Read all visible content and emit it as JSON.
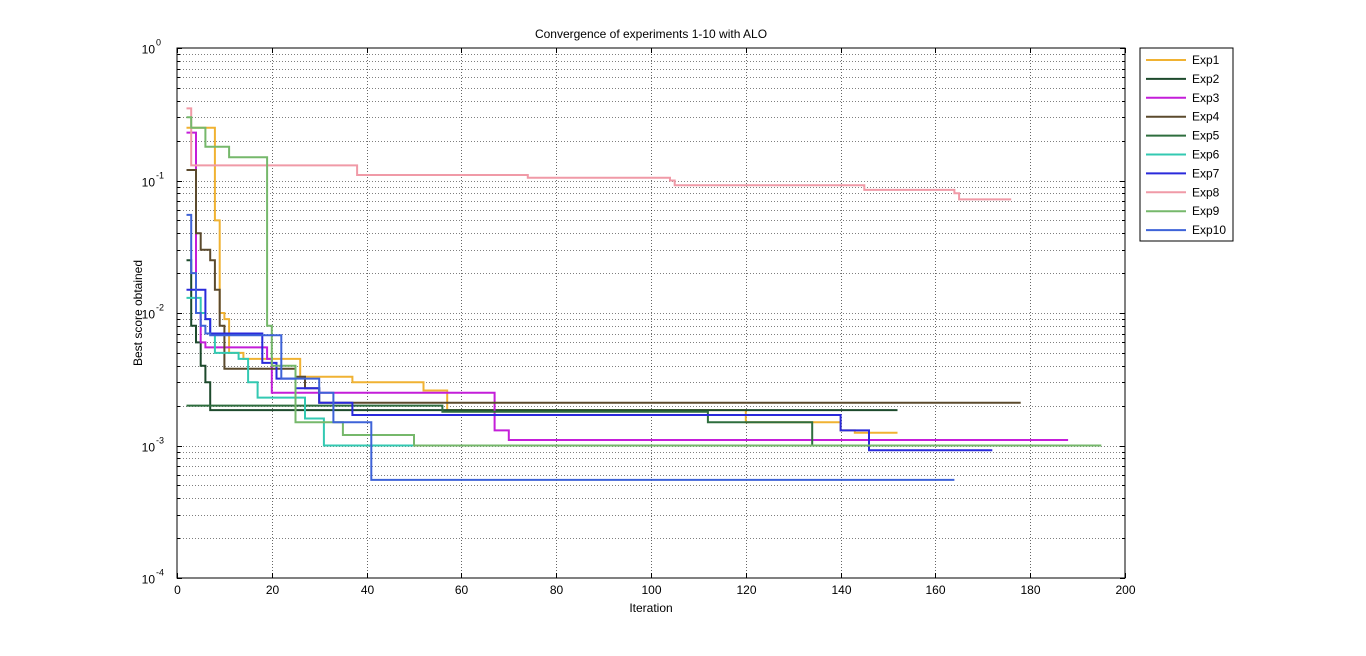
{
  "chart_data": {
    "type": "line",
    "title": "Convergence of experiments 1-10 with ALO",
    "xlabel": "Iteration",
    "ylabel": "Best score obtained",
    "xlim": [
      0,
      200
    ],
    "ylim": [
      0.0001,
      1
    ],
    "yscale": "log",
    "grid": true,
    "legend_position": "outside-top-right",
    "x_ticks": [
      0,
      20,
      40,
      60,
      80,
      100,
      120,
      140,
      160,
      180,
      200
    ],
    "y_ticks": [
      {
        "value": 1,
        "base": "10",
        "exp": "0"
      },
      {
        "value": 0.1,
        "base": "10",
        "exp": "-1"
      },
      {
        "value": 0.01,
        "base": "10",
        "exp": "-2"
      },
      {
        "value": 0.001,
        "base": "10",
        "exp": "-3"
      },
      {
        "value": 0.0001,
        "base": "10",
        "exp": "-4"
      }
    ],
    "series": [
      {
        "name": "Exp1",
        "color": "#f0b232",
        "x": [
          2,
          3,
          7,
          8,
          9,
          10,
          11,
          14,
          26,
          37,
          52,
          57,
          120,
          140,
          143,
          152
        ],
        "y": [
          0.25,
          0.25,
          0.25,
          0.05,
          0.01,
          0.009,
          0.005,
          0.0045,
          0.0033,
          0.003,
          0.0026,
          0.00185,
          0.0015,
          0.0013,
          0.00125,
          0.00125
        ]
      },
      {
        "name": "Exp2",
        "color": "#1d4a2c",
        "x": [
          2,
          3,
          4,
          5,
          6,
          7,
          50,
          152
        ],
        "y": [
          0.025,
          0.008,
          0.006,
          0.004,
          0.003,
          0.00185,
          0.00185,
          0.00185
        ]
      },
      {
        "name": "Exp3",
        "color": "#c41ed9",
        "x": [
          2,
          3,
          4,
          5,
          6,
          15,
          19,
          20,
          67,
          70,
          188
        ],
        "y": [
          0.23,
          0.23,
          0.01,
          0.006,
          0.0055,
          0.0055,
          0.0045,
          0.0025,
          0.0013,
          0.0011,
          0.0011
        ]
      },
      {
        "name": "Exp4",
        "color": "#5b4a2d",
        "x": [
          2,
          3,
          4,
          5,
          6,
          7,
          8,
          9,
          10,
          20,
          25,
          27,
          30,
          178
        ],
        "y": [
          0.12,
          0.12,
          0.04,
          0.03,
          0.03,
          0.025,
          0.015,
          0.008,
          0.0038,
          0.0038,
          0.0033,
          0.0027,
          0.0021,
          0.0021
        ]
      },
      {
        "name": "Exp5",
        "color": "#2e6e3e",
        "x": [
          2,
          56,
          112,
          134,
          190
        ],
        "y": [
          0.002,
          0.0018,
          0.0015,
          0.001,
          0.001
        ]
      },
      {
        "name": "Exp6",
        "color": "#33c9b2",
        "x": [
          2,
          4,
          5,
          6,
          7,
          8,
          11,
          13,
          15,
          17,
          18,
          22,
          27,
          31,
          132
        ],
        "y": [
          0.013,
          0.013,
          0.01,
          0.009,
          0.007,
          0.005,
          0.005,
          0.0045,
          0.003,
          0.0023,
          0.0023,
          0.0023,
          0.0016,
          0.001,
          0.001
        ]
      },
      {
        "name": "Exp7",
        "color": "#2a2adb",
        "x": [
          2,
          4,
          6,
          7,
          12,
          18,
          21,
          25,
          30,
          37,
          140,
          146,
          172
        ],
        "y": [
          0.015,
          0.015,
          0.009,
          0.007,
          0.007,
          0.0042,
          0.0032,
          0.0027,
          0.0021,
          0.0017,
          0.0013,
          0.00092,
          0.00092
        ]
      },
      {
        "name": "Exp8",
        "color": "#f09aa7",
        "x": [
          2,
          3,
          37,
          38,
          74,
          104,
          105,
          145,
          164,
          165,
          176
        ],
        "y": [
          0.35,
          0.13,
          0.13,
          0.11,
          0.105,
          0.1,
          0.092,
          0.085,
          0.08,
          0.072,
          0.072
        ]
      },
      {
        "name": "Exp9",
        "color": "#76b86b",
        "x": [
          2,
          3,
          6,
          11,
          18,
          19,
          20,
          22,
          25,
          35,
          50,
          195
        ],
        "y": [
          0.3,
          0.25,
          0.18,
          0.15,
          0.15,
          0.008,
          0.004,
          0.004,
          0.0015,
          0.0012,
          0.001,
          0.001
        ]
      },
      {
        "name": "Exp10",
        "color": "#3e63d8",
        "x": [
          2,
          3,
          4,
          5,
          6,
          7,
          9,
          21,
          22,
          30,
          33,
          40,
          41,
          164
        ],
        "y": [
          0.055,
          0.02,
          0.01,
          0.008,
          0.007,
          0.0068,
          0.0068,
          0.0068,
          0.0032,
          0.0025,
          0.0015,
          0.0015,
          0.00055,
          0.00055
        ]
      }
    ]
  }
}
